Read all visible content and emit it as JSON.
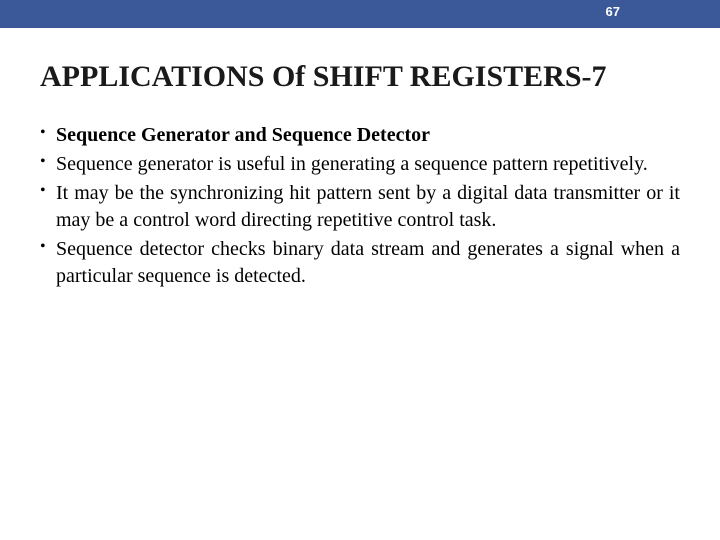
{
  "header": {
    "page_number": "67",
    "bar_color": "#3b5998",
    "text_color": "#ffffff"
  },
  "title": "APPLICATIONS Of SHIFT REGISTERS-7",
  "bullets": [
    {
      "text": "Sequence Generator and Sequence Detector",
      "bold": true
    },
    {
      "text": "Sequence generator is useful in generating a sequence pattern repetitively.",
      "bold": false
    },
    {
      "text": "It may be the synchronizing hit pattern sent by a digital data transmitter or it may be a control word directing repetitive control task.",
      "bold": false
    },
    {
      "text": "Sequence detector checks binary data stream and generates a signal when a particular sequence is detected.",
      "bold": false
    }
  ],
  "styling": {
    "background_color": "#ffffff",
    "title_fontsize": 30,
    "body_fontsize": 20,
    "title_color": "#1a1a1a",
    "body_color": "#000000",
    "font_family": "Book Antiqua, Georgia, serif"
  }
}
